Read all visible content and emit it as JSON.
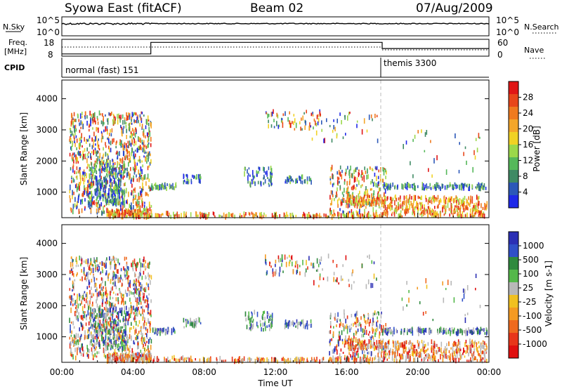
{
  "header": {
    "title": "Syowa East (fitACF)",
    "beam": "Beam 02",
    "date": "07/Aug/2009"
  },
  "top_panels": {
    "nsky_label": "N.Sky",
    "nsky_ticks": [
      "10^5",
      "10^0"
    ],
    "nsearch_label": "N.Search",
    "nsearch_ticks": [
      "10^5",
      "10^0"
    ],
    "freq_label_1": "Freq.",
    "freq_label_2": "[MHz]",
    "freq_ticks": [
      "18",
      "8"
    ],
    "nave_label": "Nave",
    "nave_ticks": [
      "60",
      "0"
    ],
    "cpid_label": "CPID",
    "cpid_modes": [
      {
        "name": "normal (fast) 151",
        "start_hour": 0,
        "end_hour": 18
      },
      {
        "name": "themis 3300",
        "start_hour": 18,
        "end_hour": 24
      }
    ],
    "freq_steps": [
      {
        "start_hour": 0,
        "end_hour": 5.0,
        "level": 0.1
      },
      {
        "start_hour": 5.0,
        "end_hour": 18.0,
        "level": 0.85
      },
      {
        "start_hour": 18.0,
        "end_hour": 24.0,
        "level": 0.45
      }
    ]
  },
  "chart_data": [
    {
      "type": "heatmap",
      "title": "Power",
      "ylabel": "Slant Range [km]",
      "ylim": [
        180,
        4600
      ],
      "yticks": [
        "1000",
        "2000",
        "3000",
        "4000"
      ],
      "yticks_values": [
        1000,
        2000,
        3000,
        4000
      ],
      "colorbar_label": "Power [dB]",
      "colorbar_ticks": [
        "4",
        "8",
        "12",
        "16",
        "20",
        "24",
        "28"
      ],
      "colorbar_tick_values": [
        4,
        8,
        12,
        16,
        20,
        24,
        28
      ],
      "colorbar_colors": [
        "#1f29e8",
        "#2c58b8",
        "#3f8a64",
        "#55b85a",
        "#9bd84a",
        "#f0d224",
        "#f4a62a",
        "#ef7a1f",
        "#e8461a",
        "#e01616"
      ]
    },
    {
      "type": "heatmap",
      "title": "Velocity",
      "ylabel": "Slant Range [km]",
      "xlabel": "Time UT",
      "ylim": [
        180,
        4600
      ],
      "yticks": [
        "1000",
        "2000",
        "3000",
        "4000"
      ],
      "yticks_values": [
        1000,
        2000,
        3000,
        4000
      ],
      "xticks": [
        "00:00",
        "04:00",
        "08:00",
        "12:00",
        "16:00",
        "20:00",
        "00:00"
      ],
      "xticks_hours": [
        0,
        4,
        8,
        12,
        16,
        20,
        24
      ],
      "colorbar_label": "Velocity [m s-1]",
      "colorbar_ticks": [
        "1000",
        "500",
        "100",
        "25",
        "-25",
        "-100",
        "-500",
        "-1000"
      ],
      "colorbar_tick_values": [
        1000,
        500,
        100,
        25,
        -25,
        -100,
        -500,
        -1000
      ],
      "colorbar_colors": [
        "#2b2fb4",
        "#3050c8",
        "#2f8a3e",
        "#54b84a",
        "#b8b8b8",
        "#f0c020",
        "#f49a22",
        "#ef6a1e",
        "#e8361a",
        "#e01010"
      ]
    }
  ]
}
